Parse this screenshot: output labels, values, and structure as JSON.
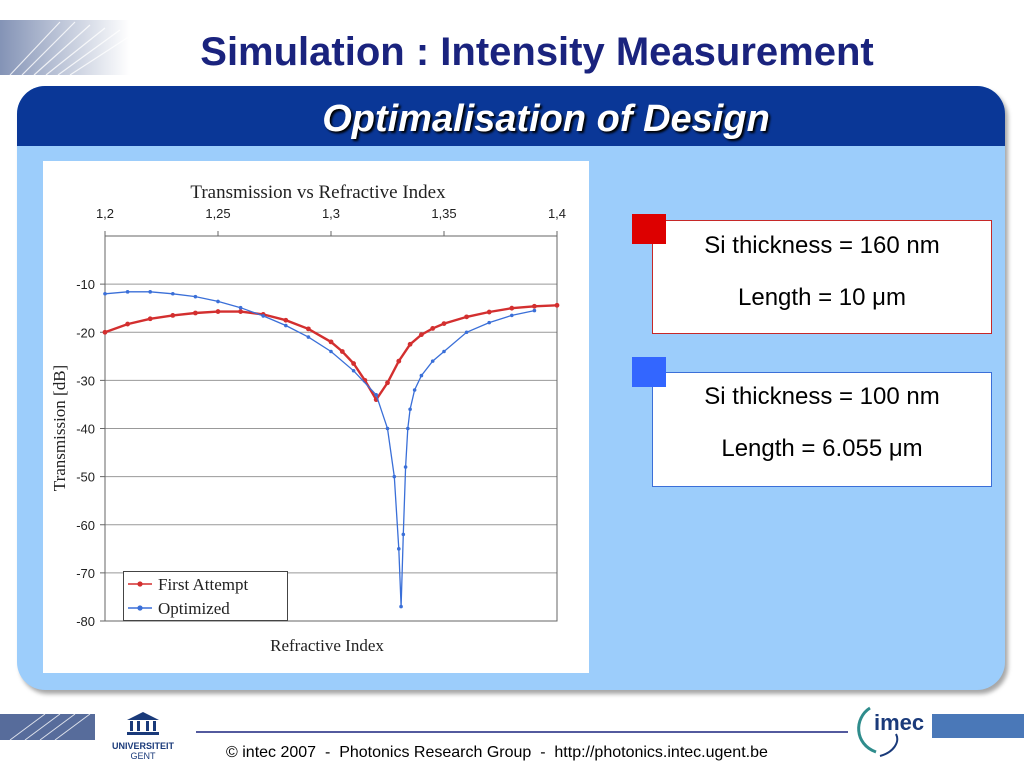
{
  "slide": {
    "title": "Simulation : Intensity Measurement",
    "subtitle": "Optimalisation of Design"
  },
  "chart_data": {
    "type": "line",
    "title": "Transmission vs Refractive Index",
    "xlabel": "Refractive Index",
    "ylabel": "Transmission [dB]",
    "xlim": [
      1.2,
      1.4
    ],
    "ylim": [
      -80,
      0
    ],
    "x_tick_labels": [
      "1,2",
      "1,25",
      "1,3",
      "1,35",
      "1,4"
    ],
    "x_ticks": [
      1.2,
      1.25,
      1.3,
      1.35,
      1.4
    ],
    "x_axis_position": "top",
    "y_tick_labels": [
      "-10",
      "-20",
      "-30",
      "-40",
      "-50",
      "-60",
      "-70",
      "-80"
    ],
    "y_ticks": [
      -10,
      -20,
      -30,
      -40,
      -50,
      -60,
      -70,
      -80
    ],
    "grid": true,
    "legend_position": "bottom-left",
    "series": [
      {
        "name": "First Attempt",
        "color": "#d32f2f",
        "x": [
          1.2,
          1.21,
          1.22,
          1.23,
          1.24,
          1.25,
          1.26,
          1.27,
          1.28,
          1.29,
          1.3,
          1.305,
          1.31,
          1.315,
          1.32,
          1.325,
          1.33,
          1.335,
          1.34,
          1.345,
          1.35,
          1.36,
          1.37,
          1.38,
          1.39,
          1.4
        ],
        "y": [
          -20,
          -18.3,
          -17.2,
          -16.5,
          -16,
          -15.7,
          -15.7,
          -16.3,
          -17.5,
          -19.3,
          -22,
          -24,
          -26.5,
          -30,
          -34,
          -30.5,
          -26,
          -22.5,
          -20.5,
          -19.2,
          -18.2,
          -16.8,
          -15.8,
          -15,
          -14.6,
          -14.4
        ]
      },
      {
        "name": "Optimized",
        "color": "#3a6fd8",
        "x": [
          1.2,
          1.21,
          1.22,
          1.23,
          1.24,
          1.25,
          1.26,
          1.27,
          1.28,
          1.29,
          1.3,
          1.31,
          1.32,
          1.325,
          1.328,
          1.33,
          1.331,
          1.332,
          1.333,
          1.334,
          1.335,
          1.337,
          1.34,
          1.345,
          1.35,
          1.36,
          1.37,
          1.38,
          1.39
        ],
        "y": [
          -12,
          -11.6,
          -11.6,
          -12,
          -12.6,
          -13.6,
          -14.9,
          -16.6,
          -18.6,
          -21,
          -24,
          -28,
          -33,
          -40,
          -50,
          -65,
          -77,
          -62,
          -48,
          -40,
          -36,
          -32,
          -29,
          -26,
          -24,
          -20,
          -18,
          -16.5,
          -15.5
        ]
      }
    ]
  },
  "designs": [
    {
      "color": "#dd0000",
      "thickness": "Si thickness  = 160 nm",
      "length": "Length = 10 μm"
    },
    {
      "color": "#3366ff",
      "thickness": "Si thickness  = 100 nm",
      "length": "Length = 6.055 μm"
    }
  ],
  "footer": {
    "copyright": "© intec 2007",
    "separator": "-",
    "group": "Photonics Research Group",
    "url": "http://photonics.intec.ugent.be"
  },
  "logos": {
    "university_line1": "UNIVERSITEIT",
    "university_line2": "GENT",
    "imec": "imec"
  }
}
